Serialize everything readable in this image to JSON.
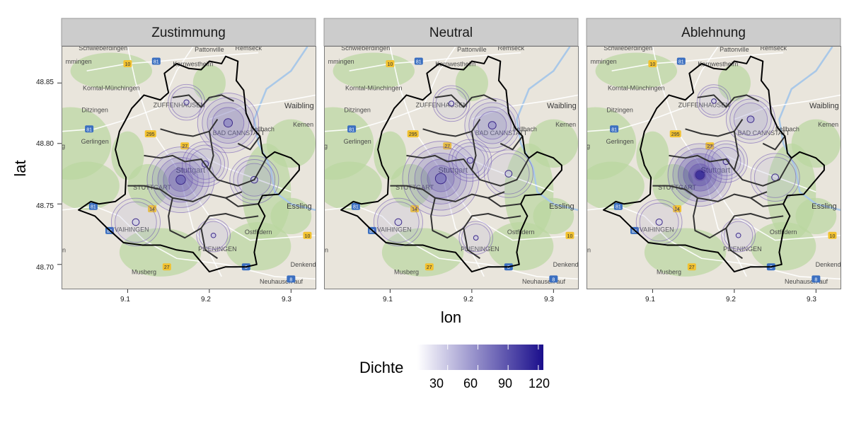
{
  "panels": [
    {
      "id": "zustimmung",
      "title": "Zustimmung"
    },
    {
      "id": "neutral",
      "title": "Neutral"
    },
    {
      "id": "ablehnung",
      "title": "Ablehnung"
    }
  ],
  "axes": {
    "xlabel": "lon",
    "ylabel": "lat",
    "x_ticks": [
      "9.1",
      "9.2",
      "9.3"
    ],
    "y_ticks": [
      "48.85",
      "48.80",
      "48.75",
      "48.70"
    ],
    "xlim": [
      9.02,
      9.33
    ],
    "ylim": [
      48.68,
      48.88
    ]
  },
  "legend": {
    "title": "Dichte",
    "ticks": [
      "30",
      "60",
      "90",
      "120"
    ],
    "range": [
      0,
      125
    ],
    "colors": [
      "#ffffff",
      "#1a0e8c"
    ]
  },
  "map_labels": [
    {
      "name": "lbl-schwieberdingen",
      "text": "Schwieberdingen",
      "lon": 9.07,
      "lat": 48.877
    },
    {
      "name": "lbl-pattonville",
      "text": "Pattonville",
      "lon": 9.2,
      "lat": 48.876
    },
    {
      "name": "lbl-remseck",
      "text": "Remseck",
      "lon": 9.248,
      "lat": 48.877
    },
    {
      "name": "lbl-ammingen",
      "text": "mmingen",
      "lon": 9.04,
      "lat": 48.866
    },
    {
      "name": "lbl-kornwestheim",
      "text": "Kornwestheim",
      "lon": 9.18,
      "lat": 48.864
    },
    {
      "name": "lbl-korntal",
      "text": "Korntal-Münchingen",
      "lon": 9.08,
      "lat": 48.844
    },
    {
      "name": "lbl-zuffenhausen",
      "text": "ZUFFENHAUSEN",
      "lon": 9.163,
      "lat": 48.83
    },
    {
      "name": "lbl-ditzingen",
      "text": "Ditzingen",
      "lon": 9.06,
      "lat": 48.826
    },
    {
      "name": "lbl-waiblingen",
      "text": "Waibling",
      "lon": 9.31,
      "lat": 48.829
    },
    {
      "name": "lbl-fellbach",
      "text": "Fellbach",
      "lon": 9.265,
      "lat": 48.81
    },
    {
      "name": "lbl-kernen",
      "text": "Kernen",
      "lon": 9.315,
      "lat": 48.814
    },
    {
      "name": "lbl-gerlingen",
      "text": "Gerlingen",
      "lon": 9.06,
      "lat": 48.8
    },
    {
      "name": "lbl-badcannstatt",
      "text": "BAD CANNSTATT",
      "lon": 9.236,
      "lat": 48.807
    },
    {
      "name": "lbl-stuttgart",
      "text": "Stuttgart",
      "lon": 9.177,
      "lat": 48.776
    },
    {
      "name": "lbl-stuttgart-west",
      "text": "STUTTGART",
      "lon": 9.13,
      "lat": 48.762
    },
    {
      "name": "lbl-esslingen",
      "text": "Essling",
      "lon": 9.31,
      "lat": 48.746
    },
    {
      "name": "lbl-vaihingen",
      "text": "VAIHINGEN",
      "lon": 9.105,
      "lat": 48.727
    },
    {
      "name": "lbl-ostfildern",
      "text": "Ostfildern",
      "lon": 9.26,
      "lat": 48.725
    },
    {
      "name": "lbl-plieningen",
      "text": "PLIENINGEN",
      "lon": 9.21,
      "lat": 48.711
    },
    {
      "name": "lbl-musberg",
      "text": "Musberg",
      "lon": 9.12,
      "lat": 48.692
    },
    {
      "name": "lbl-denkendorf",
      "text": "Denkend",
      "lon": 9.315,
      "lat": 48.698
    },
    {
      "name": "lbl-neuhausen",
      "text": "Neuhausen auf",
      "lon": 9.288,
      "lat": 48.684
    },
    {
      "name": "lbl-left-g",
      "text": "rg",
      "lon": 9.02,
      "lat": 48.796
    },
    {
      "name": "lbl-left-en",
      "text": "en",
      "lon": 9.02,
      "lat": 48.71
    }
  ],
  "road_shields": [
    {
      "text": "10",
      "lon": 9.1,
      "lat": 48.866,
      "color": "#f2c230"
    },
    {
      "text": "81",
      "lon": 9.135,
      "lat": 48.868,
      "color": "#3b6fc0"
    },
    {
      "text": "81",
      "lon": 9.053,
      "lat": 48.812,
      "color": "#3b6fc0"
    },
    {
      "text": "295",
      "lon": 9.128,
      "lat": 48.808,
      "color": "#f2c230"
    },
    {
      "text": "27",
      "lon": 9.17,
      "lat": 48.798,
      "color": "#f2c230"
    },
    {
      "text": "81",
      "lon": 9.058,
      "lat": 48.748,
      "color": "#3b6fc0"
    },
    {
      "text": "81",
      "lon": 9.078,
      "lat": 48.728,
      "color": "#3b6fc0"
    },
    {
      "text": "14",
      "lon": 9.13,
      "lat": 48.746,
      "color": "#f2c230"
    },
    {
      "text": "10",
      "lon": 9.32,
      "lat": 48.724,
      "color": "#f2c230"
    },
    {
      "text": "27",
      "lon": 9.148,
      "lat": 48.698,
      "color": "#f2c230"
    },
    {
      "text": "8",
      "lon": 9.245,
      "lat": 48.698,
      "color": "#3b6fc0"
    },
    {
      "text": "8",
      "lon": 9.3,
      "lat": 48.688,
      "color": "#3b6fc0"
    }
  ],
  "boundary_outer": [
    [
      9.105,
      48.829
    ],
    [
      9.12,
      48.84
    ],
    [
      9.14,
      48.836
    ],
    [
      9.15,
      48.842
    ],
    [
      9.145,
      48.858
    ],
    [
      9.16,
      48.866
    ],
    [
      9.175,
      48.862
    ],
    [
      9.19,
      48.861
    ],
    [
      9.2,
      48.868
    ],
    [
      9.215,
      48.866
    ],
    [
      9.22,
      48.872
    ],
    [
      9.235,
      48.868
    ],
    [
      9.233,
      48.852
    ],
    [
      9.242,
      48.844
    ],
    [
      9.245,
      48.825
    ],
    [
      9.253,
      48.813
    ],
    [
      9.262,
      48.806
    ],
    [
      9.265,
      48.792
    ],
    [
      9.27,
      48.788
    ],
    [
      9.28,
      48.793
    ],
    [
      9.3,
      48.788
    ],
    [
      9.31,
      48.782
    ],
    [
      9.31,
      48.778
    ],
    [
      9.3,
      48.77
    ],
    [
      9.285,
      48.758
    ],
    [
      9.265,
      48.757
    ],
    [
      9.26,
      48.75
    ],
    [
      9.268,
      48.74
    ],
    [
      9.26,
      48.728
    ],
    [
      9.255,
      48.71
    ],
    [
      9.258,
      48.7
    ],
    [
      9.245,
      48.698
    ],
    [
      9.22,
      48.698
    ],
    [
      9.2,
      48.694
    ],
    [
      9.18,
      48.71
    ],
    [
      9.16,
      48.712
    ],
    [
      9.14,
      48.716
    ],
    [
      9.118,
      48.716
    ],
    [
      9.095,
      48.718
    ],
    [
      9.085,
      48.724
    ],
    [
      9.075,
      48.73
    ],
    [
      9.06,
      48.74
    ],
    [
      9.04,
      48.745
    ],
    [
      9.055,
      48.752
    ],
    [
      9.065,
      48.75
    ],
    [
      9.085,
      48.752
    ],
    [
      9.097,
      48.758
    ],
    [
      9.098,
      48.772
    ],
    [
      9.09,
      48.782
    ],
    [
      9.085,
      48.795
    ],
    [
      9.09,
      48.81
    ],
    [
      9.098,
      48.82
    ],
    [
      9.105,
      48.829
    ]
  ],
  "boundary_inner": [
    [
      [
        9.155,
        48.838
      ],
      [
        9.175,
        48.84
      ],
      [
        9.19,
        48.83
      ],
      [
        9.2,
        48.838
      ],
      [
        9.215,
        48.84
      ],
      [
        9.23,
        48.835
      ]
    ],
    [
      [
        9.14,
        48.812
      ],
      [
        9.16,
        48.808
      ],
      [
        9.18,
        48.806
      ],
      [
        9.2,
        48.81
      ],
      [
        9.21,
        48.82
      ]
    ],
    [
      [
        9.2,
        48.81
      ],
      [
        9.205,
        48.79
      ],
      [
        9.2,
        48.778
      ],
      [
        9.21,
        48.77
      ],
      [
        9.235,
        48.765
      ],
      [
        9.255,
        48.77
      ],
      [
        9.27,
        48.788
      ]
    ],
    [
      [
        9.12,
        48.79
      ],
      [
        9.14,
        48.788
      ],
      [
        9.155,
        48.79
      ],
      [
        9.17,
        48.785
      ],
      [
        9.19,
        48.787
      ],
      [
        9.2,
        48.778
      ]
    ],
    [
      [
        9.1,
        48.765
      ],
      [
        9.12,
        48.765
      ],
      [
        9.14,
        48.762
      ],
      [
        9.155,
        48.755
      ],
      [
        9.18,
        48.752
      ],
      [
        9.2,
        48.758
      ],
      [
        9.22,
        48.755
      ],
      [
        9.24,
        48.76
      ]
    ],
    [
      [
        9.155,
        48.755
      ],
      [
        9.15,
        48.74
      ],
      [
        9.152,
        48.728
      ],
      [
        9.17,
        48.722
      ],
      [
        9.19,
        48.73
      ],
      [
        9.2,
        48.74
      ],
      [
        9.22,
        48.742
      ],
      [
        9.24,
        48.738
      ],
      [
        9.26,
        48.74
      ]
    ],
    [
      [
        9.19,
        48.73
      ],
      [
        9.195,
        48.712
      ],
      [
        9.21,
        48.705
      ]
    ],
    [
      [
        9.235,
        48.8
      ],
      [
        9.25,
        48.795
      ],
      [
        9.262,
        48.806
      ]
    ],
    [
      [
        9.22,
        48.755
      ],
      [
        9.235,
        48.748
      ],
      [
        9.26,
        48.75
      ]
    ]
  ],
  "contour_levels": [
    {
      "level": 0.15
    },
    {
      "level": 0.28
    },
    {
      "level": 0.42
    },
    {
      "level": 0.56
    },
    {
      "level": 0.7
    },
    {
      "level": 0.84
    }
  ],
  "densities": {
    "zustimmung": [
      {
        "lon": 9.165,
        "lat": 48.77,
        "weight": 85,
        "spread": 0.022
      },
      {
        "lon": 9.223,
        "lat": 48.817,
        "weight": 68,
        "spread": 0.02
      },
      {
        "lon": 9.195,
        "lat": 48.783,
        "weight": 45,
        "spread": 0.015
      },
      {
        "lon": 9.255,
        "lat": 48.77,
        "weight": 38,
        "spread": 0.016
      },
      {
        "lon": 9.205,
        "lat": 48.724,
        "weight": 32,
        "spread": 0.011
      },
      {
        "lon": 9.172,
        "lat": 48.834,
        "weight": 30,
        "spread": 0.012
      },
      {
        "lon": 9.11,
        "lat": 48.735,
        "weight": 26,
        "spread": 0.016
      }
    ],
    "neutral": [
      {
        "lon": 9.162,
        "lat": 48.771,
        "weight": 75,
        "spread": 0.025
      },
      {
        "lon": 9.225,
        "lat": 48.815,
        "weight": 58,
        "spread": 0.018
      },
      {
        "lon": 9.198,
        "lat": 48.786,
        "weight": 40,
        "spread": 0.014
      },
      {
        "lon": 9.245,
        "lat": 48.775,
        "weight": 30,
        "spread": 0.016
      },
      {
        "lon": 9.205,
        "lat": 48.722,
        "weight": 30,
        "spread": 0.011
      },
      {
        "lon": 9.11,
        "lat": 48.735,
        "weight": 28,
        "spread": 0.016
      },
      {
        "lon": 9.175,
        "lat": 48.833,
        "weight": 22,
        "spread": 0.012
      }
    ],
    "ablehnung": [
      {
        "lon": 9.158,
        "lat": 48.774,
        "weight": 120,
        "spread": 0.021
      },
      {
        "lon": 9.22,
        "lat": 48.82,
        "weight": 48,
        "spread": 0.016
      },
      {
        "lon": 9.19,
        "lat": 48.785,
        "weight": 40,
        "spread": 0.014
      },
      {
        "lon": 9.25,
        "lat": 48.772,
        "weight": 28,
        "spread": 0.016
      },
      {
        "lon": 9.205,
        "lat": 48.724,
        "weight": 28,
        "spread": 0.011
      },
      {
        "lon": 9.175,
        "lat": 48.835,
        "weight": 26,
        "spread": 0.011
      },
      {
        "lon": 9.108,
        "lat": 48.735,
        "weight": 24,
        "spread": 0.015
      }
    ]
  },
  "colors": {
    "strip_bg": "#cccccc",
    "map_base": "#e9e5dc",
    "green": "#b9d7a0",
    "water": "#a9c8e8",
    "road_white": "#ffffff",
    "boundary": "#000000",
    "inner_boundary": "#333333",
    "density_low": "#ffffff",
    "density_high": "#1a0e8c",
    "contour": "#6a4fb0"
  }
}
